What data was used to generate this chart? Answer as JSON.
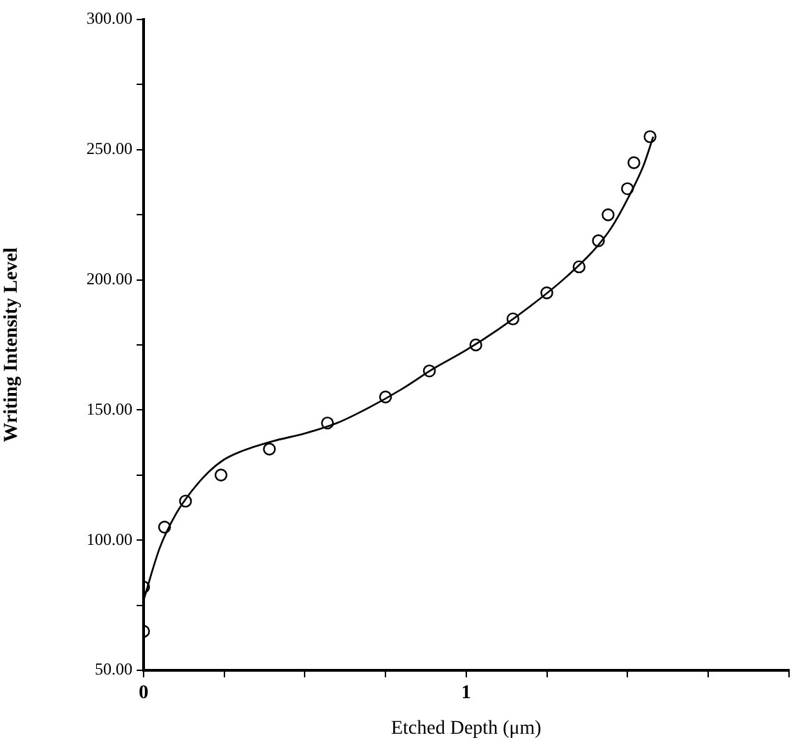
{
  "chart_data": {
    "type": "scatter",
    "xlabel": "Etched Depth (μm)",
    "ylabel": "Writing Intensity Level",
    "xlim": [
      0,
      2
    ],
    "ylim": [
      50,
      300
    ],
    "xticks": [
      0,
      {
        "value": 0.25,
        "label": null
      },
      {
        "value": 0.5,
        "label": null
      },
      {
        "value": 0.75,
        "label": null
      },
      1,
      {
        "value": 1.25,
        "label": null
      },
      {
        "value": 1.5,
        "label": null
      },
      {
        "value": 1.75,
        "label": null
      },
      {
        "value": 2,
        "label": null
      }
    ],
    "yticks": [
      {
        "value": 50,
        "label": "50.00"
      },
      {
        "value": 75,
        "label": null
      },
      {
        "value": 100,
        "label": "100.00"
      },
      {
        "value": 125,
        "label": null
      },
      {
        "value": 150,
        "label": "150.00"
      },
      {
        "value": 175,
        "label": null
      },
      {
        "value": 200,
        "label": "200.00"
      },
      {
        "value": 225,
        "label": null
      },
      {
        "value": 250,
        "label": "250.00"
      },
      {
        "value": 275,
        "label": null
      },
      {
        "value": 300,
        "label": "300.00"
      }
    ],
    "grid": false,
    "legend": false,
    "series": [
      {
        "color": "#000000",
        "marker": "circle",
        "x": [
          0,
          0,
          0.065,
          0.13,
          0.24,
          0.39,
          0.57,
          0.75,
          0.886,
          1.03,
          1.145,
          1.25,
          1.35,
          1.41,
          1.44,
          1.5,
          1.52,
          1.57
        ],
        "values": [
          65,
          82,
          105,
          115,
          125,
          135,
          145,
          155,
          165,
          175,
          185,
          195,
          205,
          215,
          225,
          235,
          245,
          255
        ]
      },
      {
        "type": "line",
        "color": "#000000",
        "marker": "none",
        "line_style": "solid",
        "x": [
          0,
          0.05,
          0.1,
          0.15,
          0.2,
          0.25,
          0.3,
          0.4,
          0.5,
          0.6,
          0.7,
          0.8,
          0.9,
          1,
          1.1,
          1.2,
          1.3,
          1.4,
          1.45,
          1.5,
          1.55,
          1.58
        ],
        "values": [
          77,
          97,
          110,
          119,
          126,
          131,
          134,
          138,
          141,
          145,
          151,
          158,
          166,
          173,
          181,
          190,
          200,
          212,
          220,
          231,
          244,
          255
        ]
      }
    ]
  }
}
